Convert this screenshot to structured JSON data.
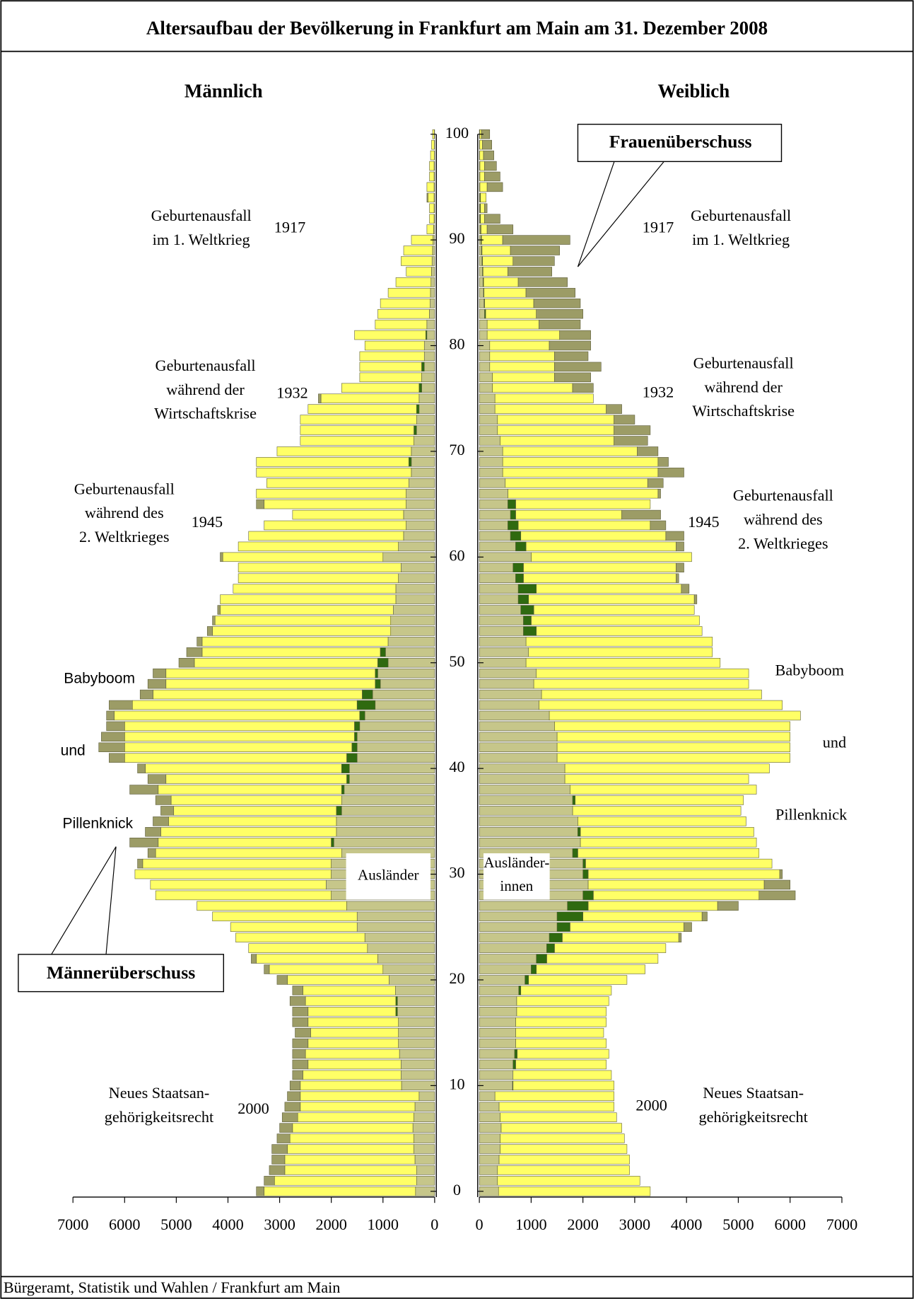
{
  "chart_data": {
    "type": "population_pyramid",
    "title": "Altersaufbau der Bevölkerung in Frankfurt am Main am 31. Dezember 2008",
    "source": "Bürgeramt, Statistik und Wahlen / Frankfurt am Main",
    "xlim": [
      0,
      7000
    ],
    "xticks": [
      0,
      1000,
      2000,
      3000,
      4000,
      5000,
      6000,
      7000
    ],
    "ylim": [
      0,
      100
    ],
    "yticks": [
      0,
      10,
      20,
      30,
      40,
      50,
      60,
      70,
      80,
      90,
      100
    ],
    "colors": {
      "total": "#ffff66",
      "foreign": "#c6c68a",
      "excess": "#9c9c66",
      "foreign_excess": "#2f6a10"
    },
    "ages": [
      0,
      1,
      2,
      3,
      4,
      5,
      6,
      7,
      8,
      9,
      10,
      11,
      12,
      13,
      14,
      15,
      16,
      17,
      18,
      19,
      20,
      21,
      22,
      23,
      24,
      25,
      26,
      27,
      28,
      29,
      30,
      31,
      32,
      33,
      34,
      35,
      36,
      37,
      38,
      39,
      40,
      41,
      42,
      43,
      44,
      45,
      46,
      47,
      48,
      49,
      50,
      51,
      52,
      53,
      54,
      55,
      56,
      57,
      58,
      59,
      60,
      61,
      62,
      63,
      64,
      65,
      66,
      67,
      68,
      69,
      70,
      71,
      72,
      73,
      74,
      75,
      76,
      77,
      78,
      79,
      80,
      81,
      82,
      83,
      84,
      85,
      86,
      87,
      88,
      89,
      90,
      91,
      92,
      93,
      94,
      95,
      96,
      97,
      98,
      99,
      100
    ],
    "series": [
      {
        "name": "Männlich",
        "side": "left",
        "foreign_label": [
          "Ausländer"
        ],
        "excess_label": "Männerüberschuss",
        "values": [
          3450,
          3300,
          3200,
          3150,
          3150,
          3050,
          3000,
          2950,
          2900,
          2850,
          2800,
          2750,
          2750,
          2750,
          2750,
          2700,
          2750,
          2750,
          2800,
          2750,
          3050,
          3300,
          3550,
          3600,
          3850,
          3950,
          4300,
          4600,
          5400,
          5500,
          5800,
          5750,
          5550,
          5900,
          5600,
          5450,
          5300,
          5400,
          5900,
          5550,
          5750,
          6300,
          6500,
          6450,
          6350,
          6350,
          6300,
          5700,
          5550,
          5450,
          4950,
          4800,
          4600,
          4400,
          4300,
          4200,
          4150,
          3900,
          3800,
          3800,
          4150,
          3800,
          3600,
          3300,
          2750,
          3450,
          3450,
          3250,
          3450,
          3450,
          3050,
          2600,
          2600,
          2600,
          2450,
          2250,
          1800,
          1450,
          1450,
          1450,
          1350,
          1550,
          1150,
          1100,
          1050,
          900,
          750,
          550,
          650,
          600,
          450,
          150,
          100,
          100,
          150,
          150,
          100,
          100,
          80,
          60,
          40
        ],
        "foreign": [
          370,
          350,
          350,
          380,
          400,
          400,
          420,
          400,
          380,
          300,
          640,
          650,
          650,
          680,
          700,
          700,
          700,
          750,
          750,
          760,
          880,
          1000,
          1100,
          1300,
          1350,
          1500,
          1500,
          1700,
          2000,
          2100,
          2000,
          2000,
          1800,
          2000,
          1900,
          1900,
          1900,
          1800,
          1800,
          1700,
          1800,
          1700,
          1600,
          1550,
          1550,
          1450,
          1500,
          1400,
          1150,
          1150,
          1100,
          1050,
          900,
          850,
          850,
          800,
          750,
          750,
          700,
          650,
          1000,
          700,
          600,
          550,
          600,
          550,
          550,
          500,
          450,
          500,
          450,
          400,
          400,
          350,
          350,
          300,
          300,
          250,
          250,
          200,
          200,
          170,
          150,
          100,
          90,
          80,
          70,
          60,
          50,
          40,
          30,
          20,
          10,
          10,
          10,
          10,
          10,
          10,
          5,
          5,
          5
        ],
        "phases": [
          "Babyboom",
          "und",
          "Pillenknick"
        ],
        "annotations": [
          {
            "lines": [
              "Geburtenausfall",
              "im 1. Weltkrieg"
            ],
            "year": "1917"
          },
          {
            "lines": [
              "Geburtenausfall",
              "während der",
              "Wirtschaftskrise"
            ],
            "year": "1932"
          },
          {
            "lines": [
              "Geburtenausfall",
              "während des",
              "2. Weltkrieges"
            ],
            "year": "1945"
          },
          {
            "lines": [
              "Neues Staatsan-",
              "gehörigkeitsrecht"
            ],
            "year": "2000"
          }
        ]
      },
      {
        "name": "Weiblich",
        "side": "right",
        "foreign_label": [
          "Ausländer-",
          "innen"
        ],
        "excess_label": "Frauenüberschuss",
        "values": [
          3300,
          3100,
          2900,
          2900,
          2850,
          2800,
          2750,
          2650,
          2600,
          2600,
          2600,
          2550,
          2450,
          2500,
          2450,
          2400,
          2450,
          2450,
          2500,
          2550,
          2850,
          3200,
          3450,
          3600,
          3900,
          4100,
          4400,
          5000,
          6100,
          6000,
          5850,
          5650,
          5400,
          5350,
          5300,
          5150,
          5050,
          5100,
          5350,
          5200,
          5600,
          6000,
          6000,
          6000,
          6000,
          6200,
          5850,
          5450,
          5200,
          5200,
          4650,
          4500,
          4500,
          4300,
          4250,
          4150,
          4200,
          4050,
          3850,
          3950,
          4100,
          3950,
          3950,
          3600,
          3500,
          3300,
          3500,
          3550,
          3950,
          3650,
          3450,
          3250,
          3300,
          3000,
          2750,
          2200,
          2200,
          2150,
          2350,
          2100,
          2150,
          2150,
          1950,
          2000,
          1950,
          1850,
          1700,
          1400,
          1450,
          1550,
          1750,
          650,
          400,
          150,
          130,
          450,
          400,
          330,
          280,
          240,
          200
        ],
        "foreign": [
          370,
          350,
          350,
          380,
          400,
          400,
          420,
          400,
          380,
          300,
          650,
          650,
          700,
          730,
          700,
          700,
          700,
          720,
          720,
          800,
          950,
          1100,
          1300,
          1450,
          1600,
          1750,
          2000,
          2100,
          2200,
          2100,
          2100,
          2050,
          1900,
          1950,
          1950,
          1900,
          1800,
          1850,
          1750,
          1650,
          1650,
          1500,
          1500,
          1500,
          1450,
          1350,
          1150,
          1200,
          1050,
          1100,
          900,
          950,
          900,
          1100,
          1000,
          1050,
          950,
          1100,
          850,
          850,
          1000,
          900,
          800,
          750,
          700,
          700,
          550,
          500,
          450,
          450,
          450,
          400,
          350,
          350,
          300,
          300,
          250,
          250,
          200,
          200,
          200,
          150,
          150,
          120,
          100,
          90,
          80,
          70,
          60,
          50,
          40,
          30,
          20,
          20,
          20,
          10,
          10,
          10,
          5,
          5,
          5
        ],
        "phases": [
          "Babyboom",
          "und",
          "Pillenknick"
        ],
        "annotations": [
          {
            "lines": [
              "Geburtenausfall",
              "im 1. Weltkrieg"
            ],
            "year": "1917"
          },
          {
            "lines": [
              "Geburtenausfall",
              "während der",
              "Wirtschaftskrise"
            ],
            "year": "1932"
          },
          {
            "lines": [
              "Geburtenausfall",
              "während des",
              "2. Weltkrieges"
            ],
            "year": "1945"
          },
          {
            "lines": [
              "Neues Staatsan-",
              "gehörigkeitsrecht"
            ],
            "year": "2000"
          }
        ]
      }
    ]
  }
}
